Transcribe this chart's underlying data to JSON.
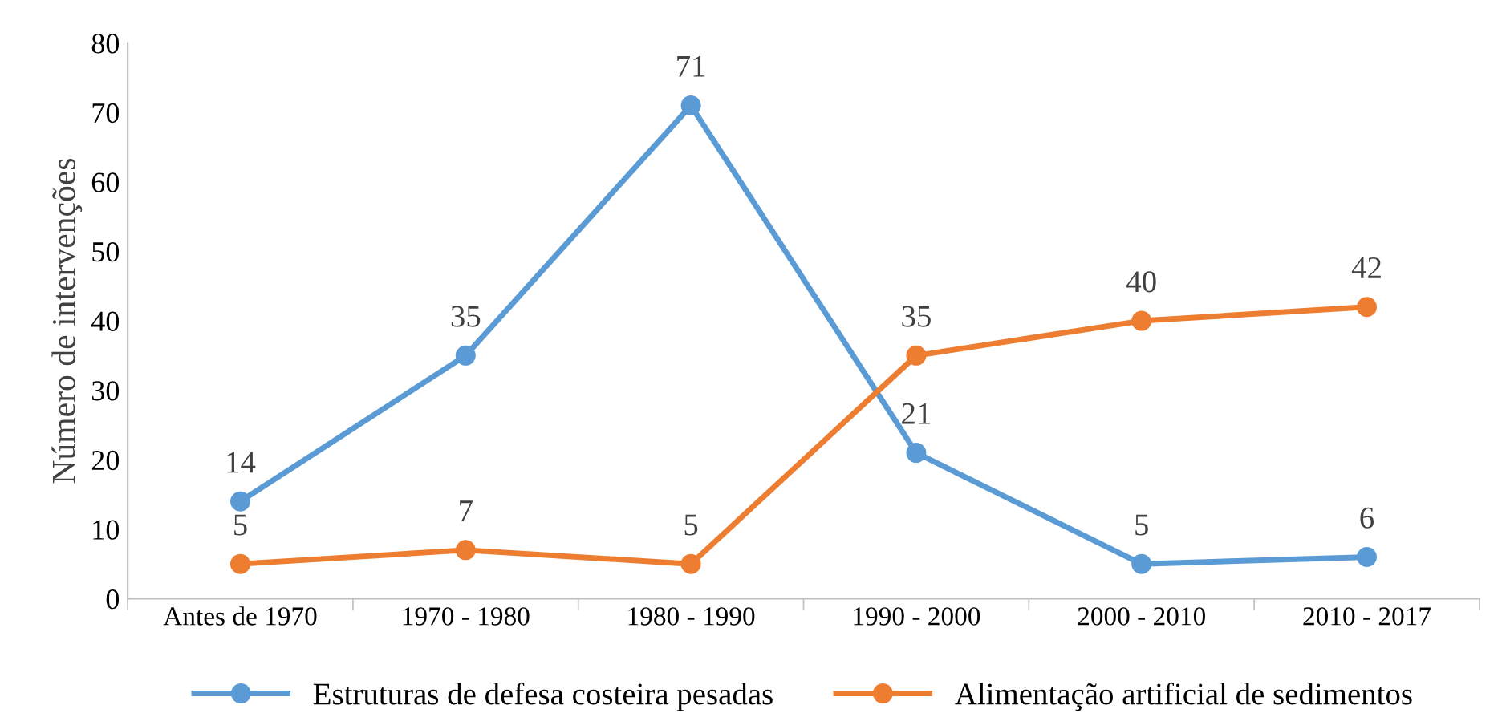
{
  "chart_data": {
    "type": "line",
    "ylabel": "Número de intervenções",
    "categories": [
      "Antes de 1970",
      "1970 - 1980",
      "1980 - 1990",
      "1990 - 2000",
      "2000 - 2010",
      "2010 - 2017"
    ],
    "series": [
      {
        "name": "Estruturas de defesa costeira pesadas",
        "color": "#5b9bd5",
        "values": [
          14,
          35,
          71,
          21,
          5,
          6
        ]
      },
      {
        "name": "Alimentação artificial de sedimentos",
        "color": "#ed7d31",
        "values": [
          5,
          7,
          5,
          35,
          40,
          42
        ]
      }
    ],
    "ylim": [
      0,
      80
    ],
    "yticks": [
      0,
      10,
      20,
      30,
      40,
      50,
      60,
      70,
      80
    ],
    "grid": false,
    "legend": "bottom",
    "marker": "circle",
    "line_style": "solid",
    "data_labels": true
  }
}
